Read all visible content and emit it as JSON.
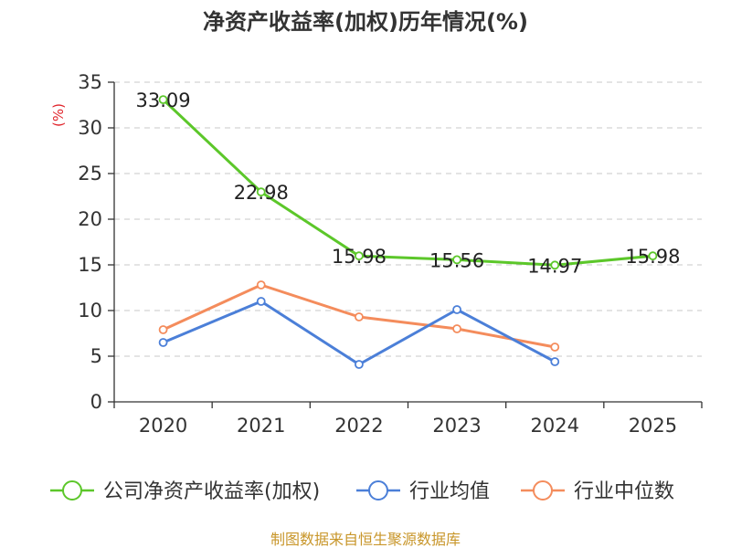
{
  "chart_data": {
    "type": "line",
    "title": "净资产收益率(加权)历年情况(%)",
    "ylabel": "(%)",
    "xlabel": "",
    "categories": [
      "2020",
      "2021",
      "2022",
      "2023",
      "2024",
      "2025"
    ],
    "ylim": [
      0,
      35
    ],
    "yticks": [
      0,
      5,
      10,
      15,
      20,
      25,
      30,
      35
    ],
    "grid": true,
    "legend_position": "bottom",
    "series": [
      {
        "name": "公司净资产收益率(加权)",
        "color": "#5cc72a",
        "values": [
          33.09,
          22.98,
          15.98,
          15.56,
          14.97,
          15.98
        ],
        "labels": [
          "33.09",
          "22.98",
          "15.98",
          "15.56",
          "14.97",
          "15.98"
        ]
      },
      {
        "name": "行业均值",
        "color": "#4b7fd8",
        "values": [
          6.5,
          11.0,
          4.1,
          10.1,
          4.4,
          null
        ]
      },
      {
        "name": "行业中位数",
        "color": "#f48c5c",
        "values": [
          7.9,
          12.8,
          9.3,
          8.0,
          6.0,
          null
        ]
      }
    ],
    "source": "制图数据来自恒生聚源数据库"
  }
}
